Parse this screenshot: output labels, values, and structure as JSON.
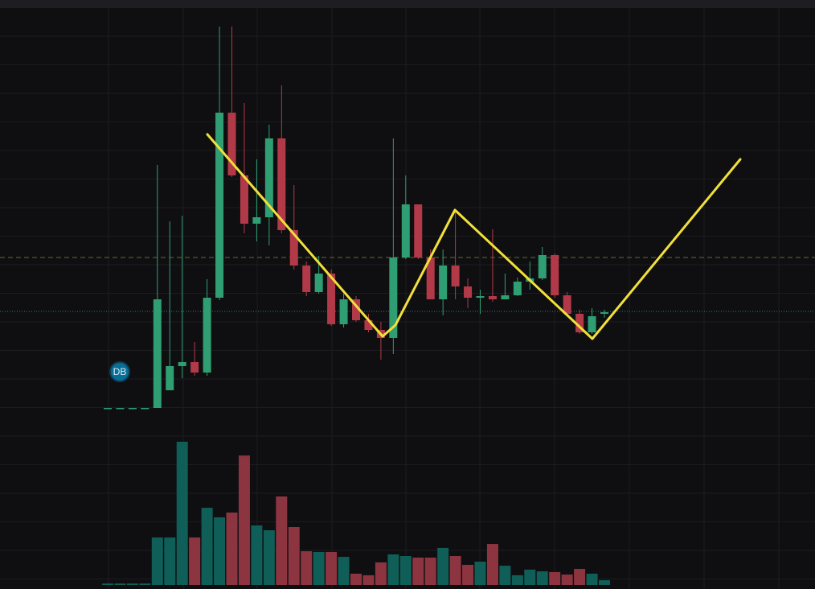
{
  "chart_data": {
    "type": "candlestick",
    "open": [
      0,
      0,
      0,
      0,
      0,
      4.4,
      10.4,
      11.4,
      8.8,
      27.4,
      73.4,
      57.8,
      45.8,
      47.4,
      67,
      44.2,
      35.4,
      28.8,
      33.4,
      20.8,
      27,
      21.8,
      19.4,
      17.4,
      37.4,
      50.6,
      37.4,
      27,
      35.4,
      30.2,
      27.4,
      27.8,
      27,
      28,
      31.4,
      32.2,
      38,
      28,
      23.4,
      18.8,
      23.4
    ],
    "high": [
      0,
      0,
      0,
      0,
      60.4,
      46.4,
      47.8,
      16.4,
      32,
      94.8,
      94.8,
      75.8,
      61.8,
      70.4,
      80.2,
      55.4,
      36.4,
      37.8,
      34.4,
      28.4,
      27.8,
      23.4,
      21.4,
      67,
      57.8,
      50.6,
      39.4,
      39.4,
      49,
      32.2,
      29.4,
      44.4,
      33.4,
      32.4,
      36.4,
      40,
      38.4,
      28.8,
      24.4,
      24.8,
      24.4
    ],
    "low": [
      0,
      0,
      0,
      0,
      0,
      4.4,
      7.4,
      8,
      8,
      26.8,
      57.4,
      43.4,
      41.4,
      40.4,
      43.4,
      34.4,
      27.8,
      28.4,
      20.4,
      20,
      21.4,
      18.8,
      12,
      13.4,
      37,
      37,
      27,
      23,
      27,
      24.8,
      23.4,
      26.4,
      27,
      27.8,
      29.4,
      31.8,
      27.4,
      23,
      18.4,
      18.4,
      22.4
    ],
    "close": [
      0,
      0,
      0,
      0,
      27,
      10.4,
      11.4,
      8.8,
      27.4,
      73.4,
      57.8,
      45.8,
      47.4,
      67,
      44.2,
      35.4,
      28.8,
      33.4,
      20.8,
      27,
      21.8,
      19.4,
      17.4,
      37.4,
      50.6,
      37.4,
      27,
      35.4,
      30.2,
      27.4,
      27.8,
      27,
      28,
      31.4,
      32.2,
      38,
      28,
      23.4,
      18.8,
      22.8,
      23.8
    ],
    "volume": [
      1,
      1,
      1,
      1,
      32.8,
      32.8,
      98.9,
      32.8,
      53.3,
      46.7,
      50,
      89.4,
      41.1,
      37.8,
      61.1,
      40,
      23.3,
      22.8,
      22.8,
      19.4,
      7.8,
      6.7,
      15.6,
      21.1,
      20,
      18.9,
      18.9,
      25.6,
      20,
      13.9,
      16.1,
      28.3,
      13.3,
      6.7,
      10.6,
      9.4,
      8.9,
      7.2,
      11.1,
      7.8,
      3.3
    ],
    "ylim": [
      0,
      98.4
    ],
    "volume_ylim": [
      0,
      100
    ],
    "up_color": "#2f9e72",
    "down_color": "#b23a48",
    "volume_up_color": "#0f5f58",
    "volume_down_color": "#8c3440",
    "price_lines": [
      {
        "value": 37.4,
        "color": "#6e6a2a",
        "style": "dashed"
      },
      {
        "value": 24,
        "color": "#2c7d78",
        "style": "dotted"
      }
    ],
    "annotation": "DB"
  }
}
